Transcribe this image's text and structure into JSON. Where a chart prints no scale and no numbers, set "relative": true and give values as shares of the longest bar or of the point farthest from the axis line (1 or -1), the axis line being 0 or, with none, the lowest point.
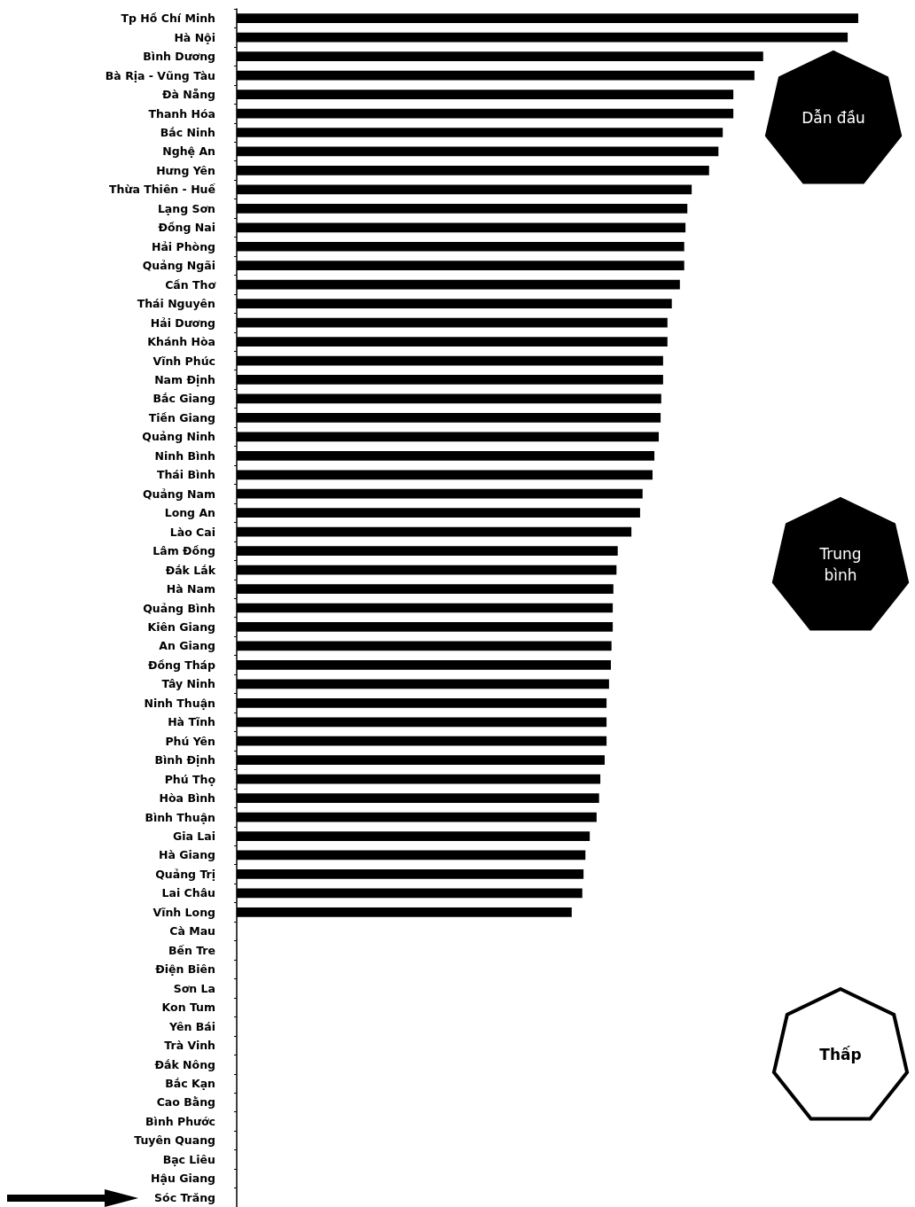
{
  "chart_data": {
    "type": "bar",
    "orientation": "horizontal",
    "relative": true,
    "color": "#000000",
    "categories": [
      "Tp Hồ Chí Minh",
      "Hà Nội",
      "Bình Dương",
      "Bà Rịa - Vũng Tàu",
      "Đà Nẵng",
      "Thanh Hóa",
      "Bắc Ninh",
      "Nghệ An",
      "Hưng Yên",
      "Thừa Thiên - Huế",
      "Lạng Sơn",
      "Đồng Nai",
      "Hải Phòng",
      "Quảng Ngãi",
      "Cần Thơ",
      "Thái Nguyên",
      "Hải Dương",
      "Khánh Hòa",
      "Vĩnh Phúc",
      "Nam Định",
      "Bắc Giang",
      "Tiền Giang",
      "Quảng Ninh",
      "Ninh Bình",
      "Thái Bình",
      "Quảng Nam",
      "Long An",
      "Lào Cai",
      "Lâm Đồng",
      "Đắk Lắk",
      "Hà Nam",
      "Quảng Bình",
      "Kiên Giang",
      "An Giang",
      "Đồng Tháp",
      "Tây Ninh",
      "Ninh Thuận",
      "Hà Tĩnh",
      "Phú Yên",
      "Bình Định",
      "Phú Thọ",
      "Hòa Bình",
      "Bình Thuận",
      "Gia Lai",
      "Hà Giang",
      "Quảng Trị",
      "Lai Châu",
      "Vĩnh Long",
      "Cà Mau",
      "Bến Tre",
      "Điện Biên",
      "Sơn La",
      "Kon Tum",
      "Yên Bái",
      "Trà Vinh",
      "Đắk Nông",
      "Bắc Kạn",
      "Cao Bằng",
      "Bình Phước",
      "Tuyên Quang",
      "Bạc Liêu",
      "Hậu Giang",
      "Sóc Trăng"
    ],
    "values": [
      1.0,
      0.983,
      0.847,
      0.833,
      0.799,
      0.799,
      0.782,
      0.775,
      0.76,
      0.732,
      0.725,
      0.722,
      0.72,
      0.72,
      0.713,
      0.7,
      0.693,
      0.693,
      0.686,
      0.686,
      0.683,
      0.682,
      0.679,
      0.672,
      0.669,
      0.653,
      0.649,
      0.635,
      0.613,
      0.611,
      0.606,
      0.605,
      0.605,
      0.603,
      0.602,
      0.599,
      0.595,
      0.595,
      0.595,
      0.592,
      0.585,
      0.583,
      0.579,
      0.568,
      0.561,
      0.558,
      0.556,
      0.539,
      null,
      null,
      null,
      null,
      null,
      null,
      null,
      null,
      null,
      null,
      null,
      null,
      null,
      null,
      null
    ],
    "annotations": [
      "Dẫn đầu",
      "Trung bình",
      "Thấp"
    ]
  }
}
